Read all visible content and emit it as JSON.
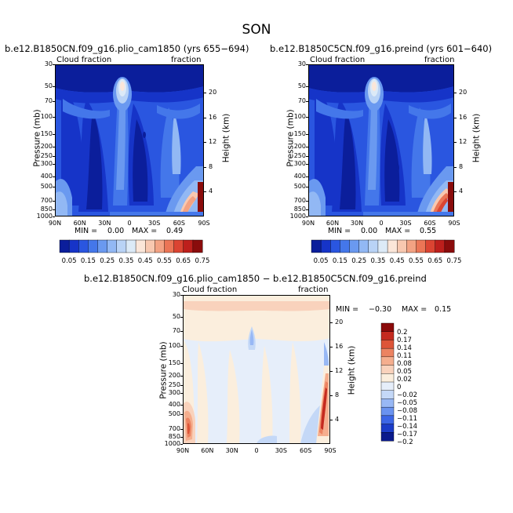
{
  "season": "SON",
  "colors": {
    "abs_scale": [
      "#0b1e9b",
      "#1634c8",
      "#2a56e0",
      "#4477ea",
      "#6a99f0",
      "#92b8f4",
      "#b9d3f6",
      "#dceaf7",
      "#fbe6d9",
      "#f8c8b0",
      "#f3a283",
      "#eb7556",
      "#db4432",
      "#bd1f1c",
      "#8a0c0c"
    ],
    "diff_scale": [
      "#0a1a8c",
      "#1b3cc8",
      "#3c66e6",
      "#6a93f0",
      "#98b8f5",
      "#c4d8f7",
      "#e6eefa",
      "#fbeedd",
      "#f9d2bc",
      "#f5ae8e",
      "#ec8361",
      "#dd5538",
      "#c42a1f",
      "#8b0a0a"
    ]
  },
  "panel_left": {
    "title": "b.e12.B1850CN.f09_g16.plio_cam1850 (yrs 655−694)",
    "left_label": "Cloud fraction",
    "right_label": "fraction",
    "min_label": "MIN =",
    "min_value": "0.00",
    "max_label": "MAX =",
    "max_value": "0.49"
  },
  "panel_right": {
    "title": "b.e12.B1850C5CN.f09_g16.preind (yrs 601−640)",
    "left_label": "Cloud fraction",
    "right_label": "fraction",
    "min_label": "MIN =",
    "min_value": "0.00",
    "max_label": "MAX =",
    "max_value": "0.55"
  },
  "panel_diff": {
    "title": "b.e12.B1850CN.f09_g16.plio_cam1850 − b.e12.B1850C5CN.f09_g16.preind",
    "left_label": "Cloud fraction",
    "right_label": "fraction",
    "min_label": "MIN =",
    "min_value": "−0.30",
    "max_label": "MAX =",
    "max_value": "0.15"
  },
  "axes": {
    "ylabel": "Pressure (mb)",
    "y2label": "Height (km)"
  },
  "abs_colorbar_labels": [
    "0.05",
    "0.15",
    "0.25",
    "0.35",
    "0.45",
    "0.55",
    "0.65",
    "0.75"
  ],
  "diff_colorbar_labels": [
    "0.2",
    "0.17",
    "0.14",
    "0.11",
    "0.08",
    "0.05",
    "0.02",
    "0",
    "−0.02",
    "−0.05",
    "−0.08",
    "−0.11",
    "−0.14",
    "−0.17",
    "−0.2"
  ],
  "chart_data": [
    {
      "type": "heatmap",
      "title": "b.e12.B1850CN.f09_g16.plio_cam1850 (yrs 655−694)",
      "xlabel": "",
      "ylabel": "Pressure (mb)",
      "y2label": "Height (km)",
      "x_ticks": [
        "90N",
        "60N",
        "30N",
        "0",
        "30S",
        "60S",
        "90S"
      ],
      "x_values": [
        90,
        60,
        30,
        0,
        -30,
        -60,
        -90
      ],
      "y_ticks": [
        1000,
        850,
        700,
        500,
        400,
        300,
        250,
        200,
        150,
        100,
        70,
        50,
        30
      ],
      "y_tick_labels": [
        "1000",
        "850",
        "700",
        "500",
        "400",
        "300",
        "250",
        "200",
        "150",
        "100",
        "70",
        "50",
        "30"
      ],
      "y_scale": "log",
      "ylim": [
        1000,
        30
      ],
      "y2_ticks": [
        4,
        8,
        12,
        16,
        20
      ],
      "y2_tick_labels": [
        "4",
        "8",
        "12",
        "16",
        "20"
      ],
      "variable": "Cloud fraction",
      "min": 0.0,
      "max": 0.49,
      "levels": [
        0.05,
        0.1,
        0.15,
        0.2,
        0.25,
        0.3,
        0.35,
        0.4,
        0.45,
        0.5,
        0.55,
        0.6,
        0.65,
        0.7,
        0.75
      ]
    },
    {
      "type": "heatmap",
      "title": "b.e12.B1850C5CN.f09_g16.preind (yrs 601−640)",
      "xlabel": "",
      "ylabel": "Pressure (mb)",
      "y2label": "Height (km)",
      "x_ticks": [
        "90N",
        "60N",
        "30N",
        "0",
        "30S",
        "60S",
        "90S"
      ],
      "x_values": [
        90,
        60,
        30,
        0,
        -30,
        -60,
        -90
      ],
      "y_ticks": [
        1000,
        850,
        700,
        500,
        400,
        300,
        250,
        200,
        150,
        100,
        70,
        50,
        30
      ],
      "y_tick_labels": [
        "1000",
        "850",
        "700",
        "500",
        "400",
        "300",
        "250",
        "200",
        "150",
        "100",
        "70",
        "50",
        "30"
      ],
      "y_scale": "log",
      "ylim": [
        1000,
        30
      ],
      "y2_ticks": [
        4,
        8,
        12,
        16,
        20
      ],
      "y2_tick_labels": [
        "4",
        "8",
        "12",
        "16",
        "20"
      ],
      "variable": "Cloud fraction",
      "min": 0.0,
      "max": 0.55,
      "levels": [
        0.05,
        0.1,
        0.15,
        0.2,
        0.25,
        0.3,
        0.35,
        0.4,
        0.45,
        0.5,
        0.55,
        0.6,
        0.65,
        0.7,
        0.75
      ]
    },
    {
      "type": "heatmap",
      "title": "b.e12.B1850CN.f09_g16.plio_cam1850 − b.e12.B1850C5CN.f09_g16.preind",
      "xlabel": "",
      "ylabel": "Pressure (mb)",
      "y2label": "Height (km)",
      "x_ticks": [
        "90N",
        "60N",
        "30N",
        "0",
        "30S",
        "60S",
        "90S"
      ],
      "x_values": [
        90,
        60,
        30,
        0,
        -30,
        -60,
        -90
      ],
      "y_ticks": [
        1000,
        850,
        700,
        500,
        400,
        300,
        250,
        200,
        150,
        100,
        70,
        50,
        30
      ],
      "y_tick_labels": [
        "1000",
        "850",
        "700",
        "500",
        "400",
        "300",
        "250",
        "200",
        "150",
        "100",
        "70",
        "50",
        "30"
      ],
      "y_scale": "log",
      "ylim": [
        1000,
        30
      ],
      "y2_ticks": [
        4,
        8,
        12,
        16,
        20
      ],
      "y2_tick_labels": [
        "4",
        "8",
        "12",
        "16",
        "20"
      ],
      "variable": "Cloud fraction",
      "min": -0.3,
      "max": 0.15,
      "levels": [
        -0.2,
        -0.17,
        -0.14,
        -0.11,
        -0.08,
        -0.05,
        -0.02,
        0,
        0.02,
        0.05,
        0.08,
        0.11,
        0.14,
        0.17,
        0.2
      ]
    }
  ]
}
